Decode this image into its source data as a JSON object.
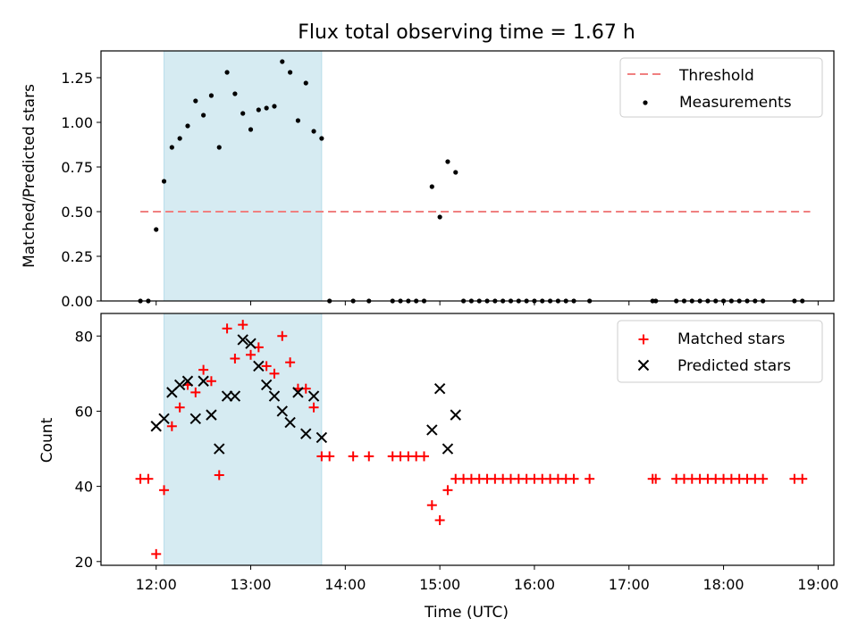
{
  "title": "Flux total observing time = 1.67 h",
  "colors": {
    "threshold": "#f08080",
    "measurement": "#000000",
    "matched": "#ff0000",
    "predicted": "#000000",
    "highlight": "#add8e6"
  },
  "chart_data": [
    {
      "type": "scatter",
      "panel": "top",
      "xlabel": "",
      "ylabel": "Matched/Predicted stars",
      "ylim": [
        0.0,
        1.4
      ],
      "yticks": [
        "0.00",
        "0.25",
        "0.50",
        "0.75",
        "1.00",
        "1.25"
      ],
      "highlight_span": [
        "12:05",
        "13:45"
      ],
      "legend": {
        "position": "upper right",
        "entries": [
          "Threshold",
          "Measurements"
        ]
      },
      "threshold": {
        "name": "Threshold",
        "y": 0.5,
        "x": [
          "11:50",
          "18:55"
        ]
      },
      "series": [
        {
          "name": "Measurements",
          "x": [
            "11:50",
            "11:55",
            "12:00",
            "12:05",
            "12:10",
            "12:15",
            "12:20",
            "12:25",
            "12:30",
            "12:35",
            "12:40",
            "12:45",
            "12:50",
            "12:55",
            "13:00",
            "13:05",
            "13:10",
            "13:15",
            "13:20",
            "13:25",
            "13:30",
            "13:35",
            "13:40",
            "13:45",
            "13:50",
            "14:05",
            "14:15",
            "14:30",
            "14:35",
            "14:40",
            "14:45",
            "14:50",
            "14:55",
            "15:00",
            "15:05",
            "15:10",
            "15:15",
            "15:20",
            "15:25",
            "15:30",
            "15:35",
            "15:40",
            "15:45",
            "15:50",
            "15:55",
            "16:00",
            "16:05",
            "16:10",
            "16:15",
            "16:20",
            "16:25",
            "16:35",
            "17:15",
            "17:17",
            "17:30",
            "17:35",
            "17:40",
            "17:45",
            "17:50",
            "17:55",
            "18:00",
            "18:05",
            "18:10",
            "18:15",
            "18:20",
            "18:25",
            "18:45",
            "18:50"
          ],
          "y": [
            0,
            0,
            0.4,
            0.67,
            0.86,
            0.91,
            0.98,
            1.12,
            1.04,
            1.15,
            0.86,
            1.28,
            1.16,
            1.05,
            0.96,
            1.07,
            1.08,
            1.09,
            1.34,
            1.28,
            1.01,
            1.22,
            0.95,
            0.91,
            0,
            0,
            0,
            0,
            0,
            0,
            0,
            0,
            0.64,
            0.47,
            0.78,
            0.72,
            0,
            0,
            0,
            0,
            0,
            0,
            0,
            0,
            0,
            0,
            0,
            0,
            0,
            0,
            0,
            0,
            0,
            0,
            0,
            0,
            0,
            0,
            0,
            0,
            0,
            0,
            0,
            0,
            0,
            0,
            0,
            0
          ]
        }
      ]
    },
    {
      "type": "scatter",
      "panel": "bottom",
      "xlabel": "Time (UTC)",
      "ylabel": "Count",
      "ylim": [
        19,
        86
      ],
      "yticks": [
        "20",
        "40",
        "60",
        "80"
      ],
      "xlim": [
        "11:25",
        "19:10"
      ],
      "xticks": [
        "12:00",
        "13:00",
        "14:00",
        "15:00",
        "16:00",
        "17:00",
        "18:00",
        "19:00"
      ],
      "highlight_span": [
        "12:05",
        "13:45"
      ],
      "legend": {
        "position": "upper right",
        "entries": [
          "Matched stars",
          "Predicted stars"
        ]
      },
      "series": [
        {
          "name": "Matched stars",
          "x": [
            "11:50",
            "11:55",
            "12:00",
            "12:05",
            "12:10",
            "12:15",
            "12:20",
            "12:25",
            "12:30",
            "12:35",
            "12:40",
            "12:45",
            "12:50",
            "12:55",
            "13:00",
            "13:05",
            "13:10",
            "13:15",
            "13:20",
            "13:25",
            "13:30",
            "13:35",
            "13:40",
            "13:45",
            "13:50",
            "14:05",
            "14:15",
            "14:30",
            "14:35",
            "14:40",
            "14:45",
            "14:50",
            "14:55",
            "15:00",
            "15:05",
            "15:10",
            "15:15",
            "15:20",
            "15:25",
            "15:30",
            "15:35",
            "15:40",
            "15:45",
            "15:50",
            "15:55",
            "16:00",
            "16:05",
            "16:10",
            "16:15",
            "16:20",
            "16:25",
            "16:35",
            "17:15",
            "17:17",
            "17:30",
            "17:35",
            "17:40",
            "17:45",
            "17:50",
            "17:55",
            "18:00",
            "18:05",
            "18:10",
            "18:15",
            "18:20",
            "18:25",
            "18:45",
            "18:50"
          ],
          "y": [
            42,
            42,
            22,
            39,
            56,
            61,
            67,
            65,
            71,
            68,
            43,
            82,
            74,
            83,
            75,
            77,
            72,
            70,
            80,
            73,
            66,
            66,
            61,
            48,
            48,
            48,
            48,
            48,
            48,
            48,
            48,
            48,
            35,
            31,
            39,
            42,
            42,
            42,
            42,
            42,
            42,
            42,
            42,
            42,
            42,
            42,
            42,
            42,
            42,
            42,
            42,
            42,
            42,
            42,
            42,
            42,
            42,
            42,
            42,
            42,
            42,
            42,
            42,
            42,
            42,
            42,
            42,
            42
          ]
        },
        {
          "name": "Predicted stars",
          "x": [
            "12:00",
            "12:05",
            "12:10",
            "12:15",
            "12:20",
            "12:25",
            "12:30",
            "12:35",
            "12:40",
            "12:45",
            "12:50",
            "12:55",
            "13:00",
            "13:05",
            "13:10",
            "13:15",
            "13:20",
            "13:25",
            "13:30",
            "13:35",
            "13:40",
            "13:45",
            "14:55",
            "15:00",
            "15:05",
            "15:10"
          ],
          "y": [
            56,
            58,
            65,
            67,
            68,
            58,
            68,
            59,
            50,
            64,
            64,
            79,
            78,
            72,
            67,
            64,
            60,
            57,
            65,
            54,
            64,
            53,
            55,
            66,
            50,
            59
          ]
        }
      ]
    }
  ]
}
